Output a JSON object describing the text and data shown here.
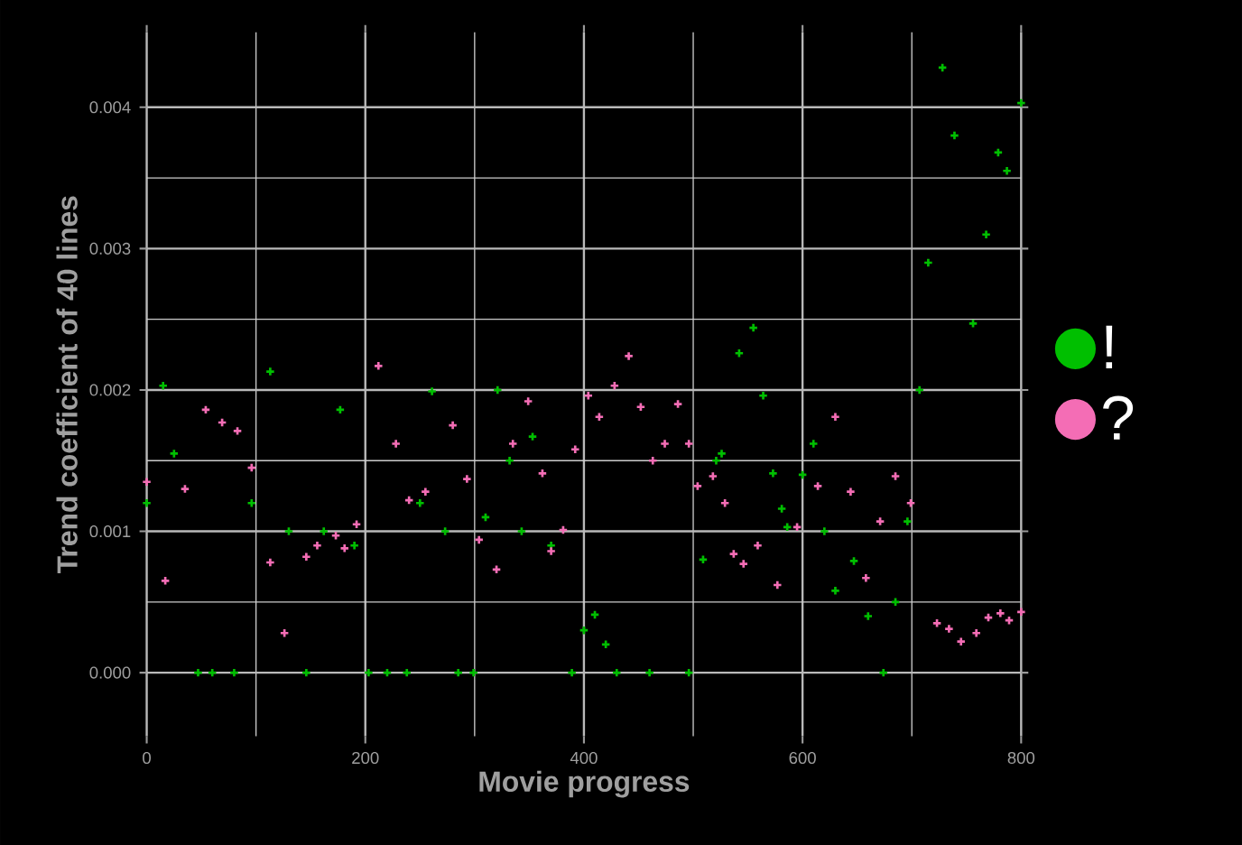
{
  "chart_data": {
    "type": "scatter",
    "xlabel": "Movie progress",
    "ylabel": "Trend coefficient of 40 lines",
    "xlim": [
      0,
      800
    ],
    "ylim": [
      -0.00045,
      0.00453
    ],
    "xticks": [
      0,
      200,
      400,
      600,
      800
    ],
    "yticks": [
      {
        "value": 0,
        "label": "0.000"
      },
      {
        "value": 0.001,
        "label": "0.001"
      },
      {
        "value": 0.002,
        "label": "0.002"
      },
      {
        "value": 0.003,
        "label": "0.003"
      },
      {
        "value": 0.004,
        "label": "0.004"
      }
    ],
    "grid": true,
    "legend": "right",
    "marker": "cross",
    "series": [
      {
        "name": "!",
        "color": "#00bf00",
        "x": [
          0,
          15,
          25,
          47,
          60,
          80,
          96,
          113,
          130,
          146,
          162,
          177,
          190,
          203,
          220,
          238,
          250,
          261,
          273,
          285,
          299,
          310,
          321,
          332,
          343,
          353,
          370,
          389,
          400,
          410,
          420,
          430,
          460,
          496,
          509,
          521,
          526,
          542,
          555,
          564,
          573,
          581,
          586,
          600,
          610,
          620,
          630,
          647,
          660,
          674,
          685,
          696,
          707,
          715,
          728,
          739,
          756,
          768,
          779,
          787,
          800
        ],
        "values": [
          0.0012,
          0.00203,
          0.00155,
          0,
          0,
          0,
          0.0012,
          0.00213,
          0.001,
          0,
          0.001,
          0.00186,
          0.0009,
          0,
          0,
          0,
          0.0012,
          0.00199,
          0.001,
          0,
          0,
          0.0011,
          0.002,
          0.0015,
          0.001,
          0.00167,
          0.0009,
          0,
          0.0003,
          0.00041,
          0.0002,
          0,
          0,
          0,
          0.0008,
          0.0015,
          0.00155,
          0.00226,
          0.00244,
          0.00196,
          0.00141,
          0.00116,
          0.00103,
          0.0014,
          0.00162,
          0.001,
          0.00058,
          0.00079,
          0.0004,
          0,
          0.0005,
          0.00107,
          0.002,
          0.0029,
          0.00428,
          0.0038,
          0.00247,
          0.0031,
          0.00368,
          0.00355,
          0.00403
        ]
      },
      {
        "name": "?",
        "color": "#f46db5",
        "x": [
          0,
          17,
          35,
          54,
          69,
          83,
          96,
          113,
          126,
          146,
          156,
          173,
          181,
          192,
          212,
          228,
          240,
          255,
          280,
          293,
          304,
          320,
          335,
          349,
          362,
          370,
          381,
          392,
          404,
          414,
          428,
          441,
          452,
          463,
          474,
          486,
          496,
          504,
          518,
          529,
          537,
          546,
          559,
          577,
          595,
          614,
          630,
          644,
          658,
          671,
          685,
          699,
          723,
          734,
          745,
          759,
          770,
          781,
          789,
          800
        ],
        "values": [
          0.00135,
          0.00065,
          0.0013,
          0.00186,
          0.00177,
          0.00171,
          0.00145,
          0.00078,
          0.00028,
          0.00082,
          0.0009,
          0.00097,
          0.00088,
          0.00105,
          0.00217,
          0.00162,
          0.00122,
          0.00128,
          0.00175,
          0.00137,
          0.00094,
          0.00073,
          0.00162,
          0.00192,
          0.00141,
          0.00086,
          0.00101,
          0.00158,
          0.00196,
          0.00181,
          0.00203,
          0.00224,
          0.00188,
          0.0015,
          0.00162,
          0.0019,
          0.00162,
          0.00132,
          0.00139,
          0.0012,
          0.00084,
          0.00077,
          0.0009,
          0.00062,
          0.00103,
          0.00132,
          0.00181,
          0.00128,
          0.00067,
          0.00107,
          0.00139,
          0.0012,
          0.00035,
          0.00031,
          0.00022,
          0.00028,
          0.00039,
          0.00042,
          0.00037,
          0.00043
        ]
      }
    ]
  }
}
